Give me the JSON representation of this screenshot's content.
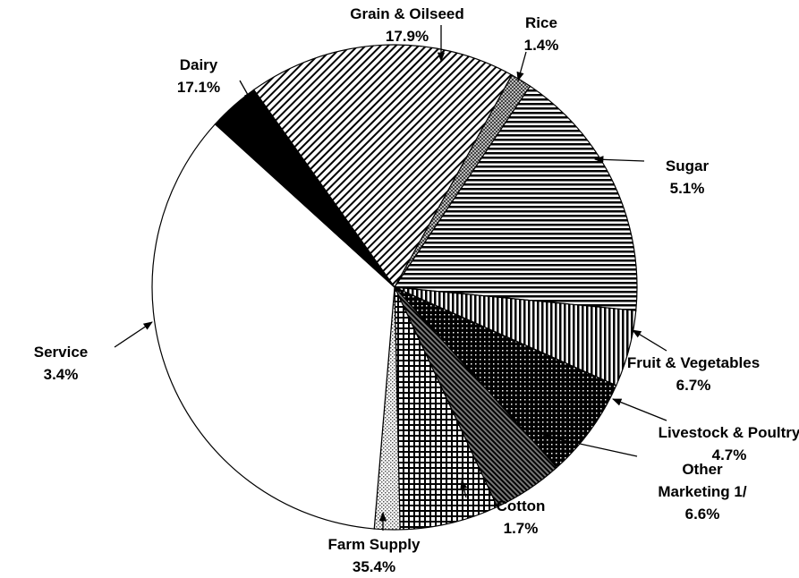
{
  "chart_data": {
    "type": "pie",
    "categories": [
      "Grain & Oilseed",
      "Rice",
      "Dairy",
      "Sugar",
      "Fruit & Vegetables",
      "Livestock & Poultry",
      "Other Marketing 1/",
      "Cotton",
      "Farm Supply",
      "Service"
    ],
    "values": [
      17.9,
      1.4,
      17.1,
      5.1,
      6.7,
      4.7,
      6.6,
      1.7,
      35.4,
      3.4
    ],
    "value_labels": [
      "17.9%",
      "1.4%",
      "17.1%",
      "5.1%",
      "6.7%",
      "4.7%",
      "6.6%",
      "1.7%",
      "35.4%",
      "3.4%"
    ]
  }
}
